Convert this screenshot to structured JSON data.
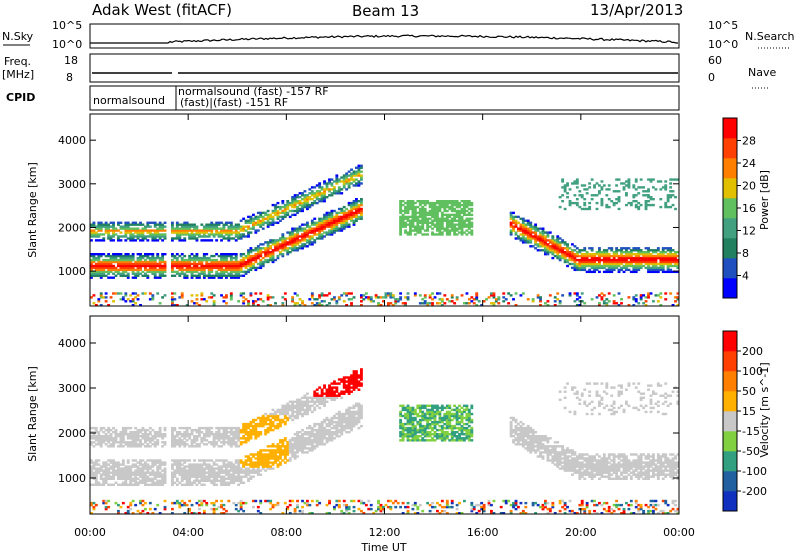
{
  "header": {
    "title": "Adak West (fitACF)",
    "beam": "Beam 13",
    "date": "13/Apr/2013"
  },
  "top_panels": {
    "nsky_label": "N.Sky",
    "nsearch_label": "N.Search",
    "freq_label_line1": "Freq.",
    "freq_label_line2": "[MHz]",
    "nave_label": "Nave",
    "cpid_label": "CPID",
    "nsky_ticks": [
      "10^5",
      "10^0"
    ],
    "nsearch_ticks": [
      "10^5",
      "10^0"
    ],
    "freq_ticks": [
      "18",
      "8"
    ],
    "nave_ticks": [
      "60",
      "0"
    ],
    "cpid_entries": [
      "normalsound",
      "normalsound (fast) -157 RF",
      "(fast)|(fast) -151 RF"
    ]
  },
  "chart_data": [
    {
      "type": "heatmap",
      "title": "",
      "xlabel": "",
      "ylabel": "Slant Range [km]",
      "x_ticks": [
        "00:00",
        "04:00",
        "08:00",
        "12:00",
        "16:00",
        "20:00",
        "00:00"
      ],
      "y_ticks": [
        1000,
        2000,
        3000,
        4000
      ],
      "xlim": [
        0,
        24
      ],
      "ylim": [
        200,
        4600
      ],
      "colorbar": {
        "label": "Power [dB]",
        "ticks": [
          4,
          8,
          12,
          16,
          20,
          24,
          28
        ],
        "range": [
          0,
          32
        ],
        "colors": [
          "#0000ff",
          "#2050c0",
          "#208060",
          "#40a080",
          "#60c060",
          "#e0c000",
          "#ff8000",
          "#ff4000",
          "#ff0000"
        ]
      }
    },
    {
      "type": "heatmap",
      "title": "",
      "xlabel": "Time UT",
      "ylabel": "Slant Range [km]",
      "x_ticks": [
        "00:00",
        "04:00",
        "08:00",
        "12:00",
        "16:00",
        "20:00",
        "00:00"
      ],
      "y_ticks": [
        1000,
        2000,
        3000,
        4000
      ],
      "xlim": [
        0,
        24
      ],
      "ylim": [
        200,
        4600
      ],
      "colorbar": {
        "label": "Velocity [m s^-1]",
        "ticks": [
          200,
          100,
          50,
          15,
          -15,
          -50,
          -100,
          -200
        ],
        "colors": [
          "#1030c0",
          "#2060a0",
          "#30a080",
          "#80d040",
          "#c8c8c8",
          "#ffb000",
          "#ff8000",
          "#ff4000",
          "#ff0000"
        ]
      }
    }
  ]
}
